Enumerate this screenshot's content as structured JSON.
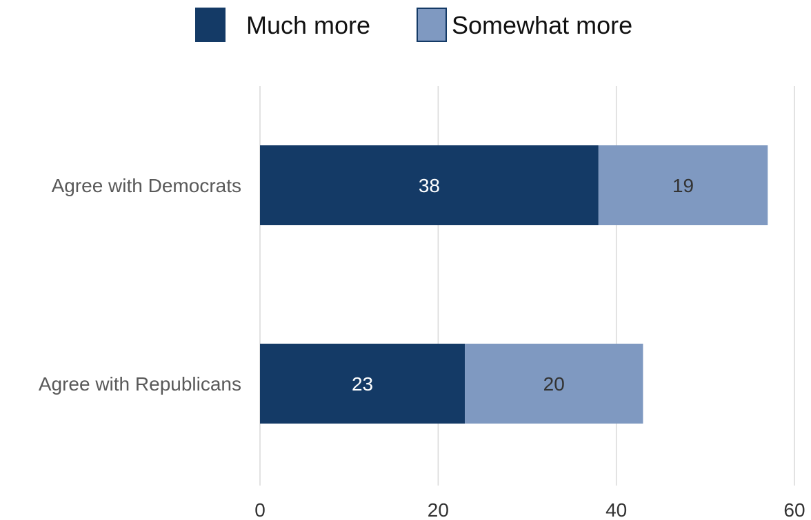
{
  "chart_data": {
    "type": "bar",
    "orientation": "horizontal",
    "stacked": true,
    "categories": [
      "Agree with Democrats",
      "Agree with Republicans"
    ],
    "series": [
      {
        "name": "Much more",
        "values": [
          38,
          23
        ],
        "color": "#143a66",
        "label_color": "#ffffff"
      },
      {
        "name": "Somewhat more",
        "values": [
          19,
          20
        ],
        "color": "#7f99c1",
        "label_color": "#333333"
      }
    ],
    "xlim": [
      0,
      60
    ],
    "x_ticks": [
      "0",
      "20",
      "40",
      "60"
    ],
    "tick_values": [
      0,
      20,
      40,
      60
    ],
    "grid": "vertical",
    "legend_position": "top-center"
  }
}
